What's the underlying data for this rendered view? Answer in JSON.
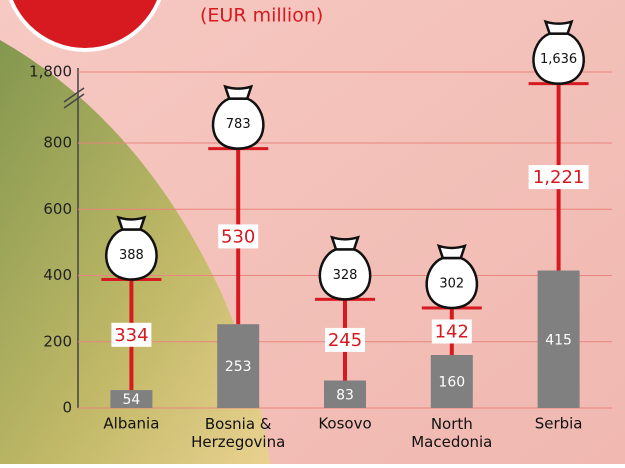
{
  "chart_data": {
    "type": "stacked-bar",
    "title": "(EUR million)",
    "categories": [
      "Albania",
      "Bosnia & Herzegovina",
      "Kosovo",
      "North Macedonia",
      "Serbia"
    ],
    "series": [
      {
        "color": "#808080",
        "values": [
          54,
          253,
          83,
          160,
          415
        ]
      },
      {
        "color": "#d71920",
        "values": [
          334,
          530,
          245,
          142,
          1221
        ],
        "value_labels": [
          "334",
          "530",
          "245",
          "142",
          "1,221"
        ]
      }
    ],
    "totals": {
      "values": [
        388,
        783,
        328,
        302,
        1636
      ],
      "value_labels": [
        "388",
        "783",
        "328",
        "302",
        "1,636"
      ]
    },
    "ylim": [
      0,
      1800
    ],
    "yticks": [
      0,
      200,
      400,
      600,
      800,
      {
        "value": 1800,
        "label": "1,800"
      }
    ],
    "axis_break": true,
    "grid": true
  }
}
